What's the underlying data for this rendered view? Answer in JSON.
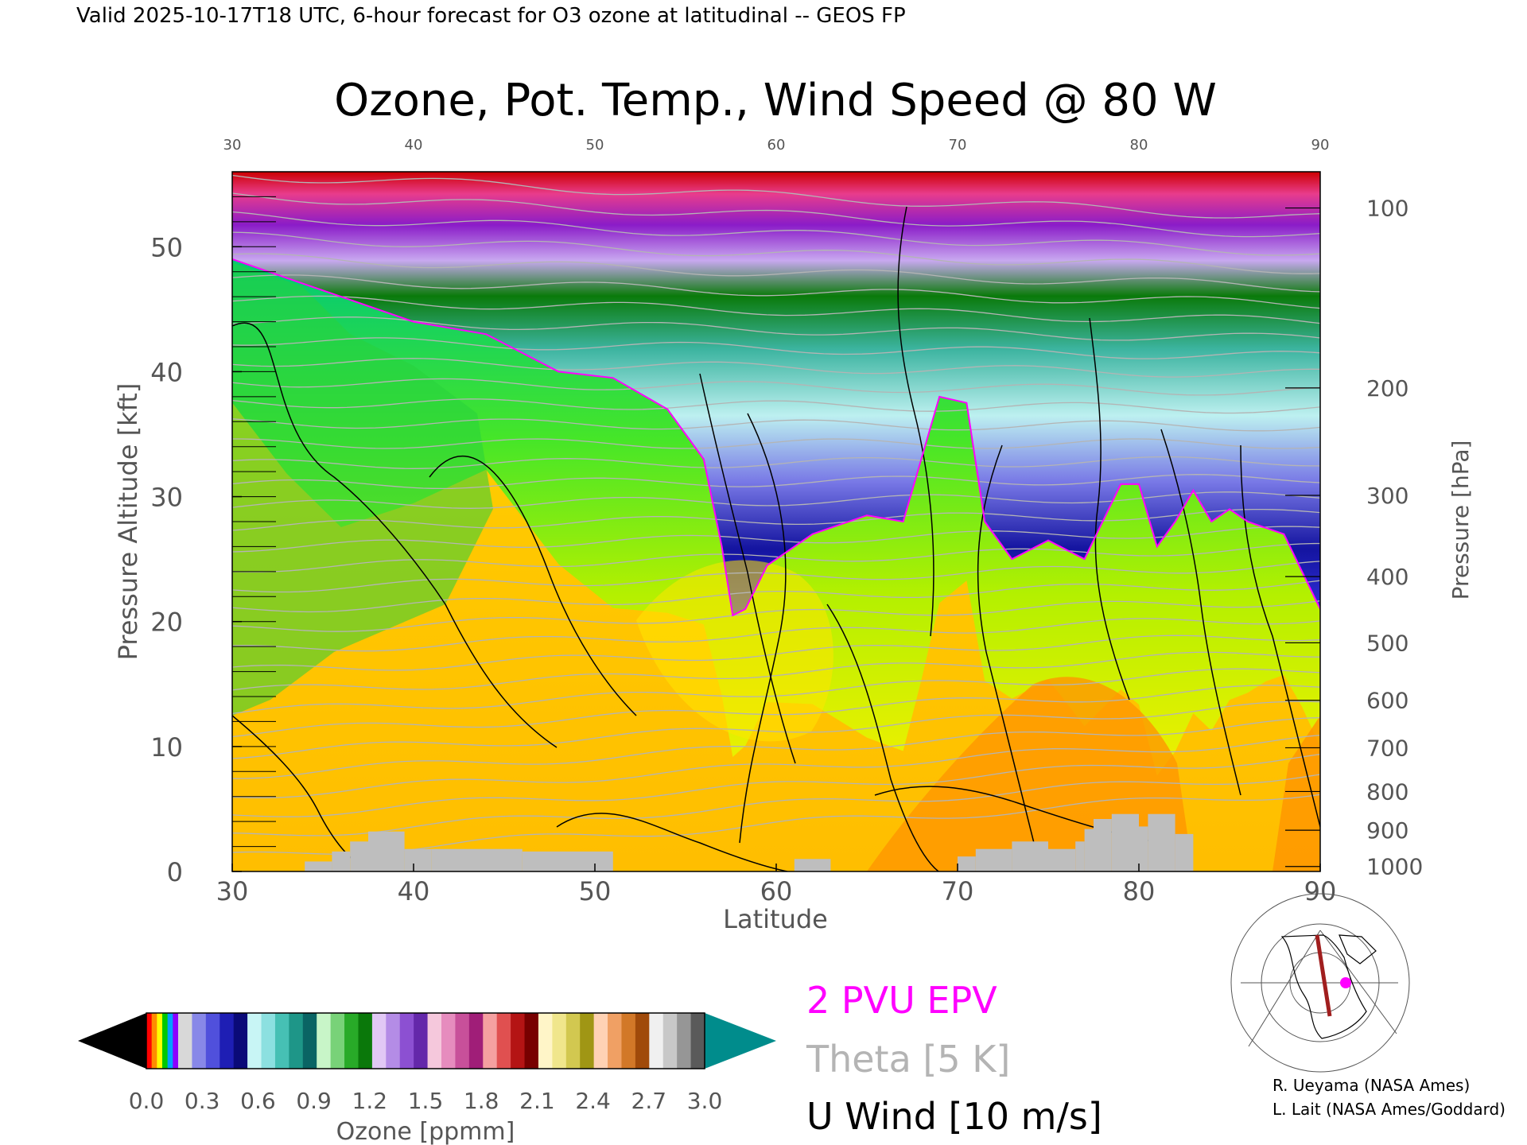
{
  "header": {
    "valid_line": "Valid 2025-10-17T18 UTC, 6-hour forecast for O3 ozone at latitudinal -- GEOS FP",
    "title": "Ozone, Pot. Temp., Wind Speed @ 80 W"
  },
  "chart_data": {
    "type": "heatmap",
    "xlabel": "Latitude",
    "ylabel": "Pressure Altitude [kft]",
    "ylabel_right": "Pressure [hPa]",
    "xlim": [
      30,
      90
    ],
    "ylim": [
      0,
      56
    ],
    "x_ticks": [
      "30",
      "40",
      "50",
      "60",
      "70",
      "80",
      "90"
    ],
    "y_ticks": [
      "0",
      "10",
      "20",
      "30",
      "40",
      "50"
    ],
    "pressure_ticks": [
      "1000",
      "900",
      "800",
      "700",
      "600",
      "500",
      "400",
      "300",
      "200",
      "100"
    ],
    "pressure_tick_kft": [
      0.4,
      3.3,
      6.4,
      9.9,
      13.7,
      18.3,
      23.6,
      30.1,
      38.7,
      53.1
    ],
    "tropopause_kft": [
      [
        30,
        49
      ],
      [
        33,
        47.5
      ],
      [
        36,
        46
      ],
      [
        40,
        44
      ],
      [
        44,
        43
      ],
      [
        48,
        40
      ],
      [
        51,
        39.5
      ],
      [
        54,
        37
      ],
      [
        56,
        33
      ],
      [
        57,
        26
      ],
      [
        57.6,
        20.5
      ],
      [
        58.3,
        21
      ],
      [
        59.5,
        24.5
      ],
      [
        62,
        27
      ],
      [
        65,
        28.5
      ],
      [
        67,
        28
      ],
      [
        68,
        33
      ],
      [
        69,
        38
      ],
      [
        70.5,
        37.5
      ],
      [
        71.5,
        28
      ],
      [
        73,
        25
      ],
      [
        75,
        26.5
      ],
      [
        77,
        25
      ],
      [
        78,
        28
      ],
      [
        79,
        31
      ],
      [
        80,
        31
      ],
      [
        81,
        26
      ],
      [
        82,
        28
      ],
      [
        83,
        30.5
      ],
      [
        84,
        28
      ],
      [
        85,
        29
      ],
      [
        86,
        28
      ],
      [
        87,
        27.5
      ],
      [
        88,
        27
      ],
      [
        89,
        24
      ],
      [
        90,
        21
      ]
    ],
    "colorbar": {
      "label": "Ozone [ppmm]",
      "ticks": [
        "0.0",
        "0.3",
        "0.6",
        "0.9",
        "1.2",
        "1.5",
        "1.8",
        "2.1",
        "2.4",
        "2.7",
        "3.0"
      ],
      "min": 0.0,
      "max": 3.0
    },
    "legend": [
      {
        "label": "2 PVU EPV",
        "color": "#ff00ff"
      },
      {
        "label": "Theta [5 K]",
        "color": "#b4b4b4"
      },
      {
        "label": "U Wind [10 m/s]",
        "color": "#000000"
      }
    ]
  },
  "credits": {
    "line1": "R. Ueyama (NASA Ames)",
    "line2": "L. Lait (NASA Ames/Goddard)"
  },
  "colors": {
    "epv": "#ff00ff",
    "theta": "#b4b4b4",
    "wind": "#000000",
    "terrain": "#bebebe"
  }
}
